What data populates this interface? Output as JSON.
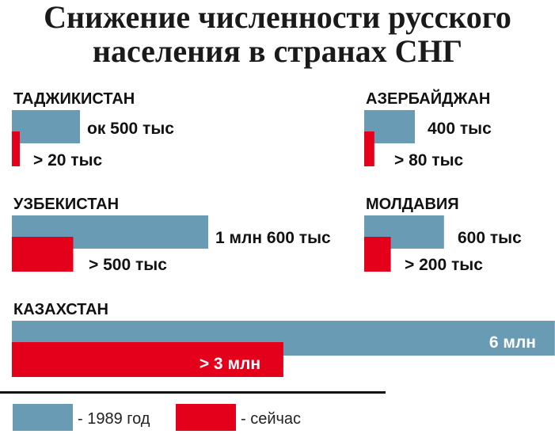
{
  "title": {
    "line1": "Снижение численности русского",
    "line2": "населения в странах СНГ"
  },
  "colors": {
    "before": "#6a9bb5",
    "now": "#e4001b"
  },
  "chart_data": {
    "type": "bar",
    "title": "Снижение численности русского населения в странах СНГ",
    "unit": "тыс",
    "series": [
      {
        "name": "1989 год",
        "color": "#6a9bb5"
      },
      {
        "name": "сейчас",
        "color": "#e4001b"
      }
    ],
    "countries": [
      {
        "name": "ТАДЖИКИСТАН",
        "before": 500,
        "now": 20,
        "before_label": "ок 500 тыс",
        "now_label": "> 20 тыс"
      },
      {
        "name": "АЗЕРБАЙДЖАН",
        "before": 400,
        "now": 80,
        "before_label": "400 тыс",
        "now_label": "> 80 тыс"
      },
      {
        "name": "УЗБЕКИСТАН",
        "before": 1600,
        "now": 500,
        "before_label": "1 млн 600 тыс",
        "now_label": "> 500 тыс"
      },
      {
        "name": "МОЛДАВИЯ",
        "before": 600,
        "now": 200,
        "before_label": "600 тыс",
        "now_label": "> 200 тыс"
      },
      {
        "name": "КАЗАХСТАН",
        "before": 6000,
        "now": 3000,
        "before_label": "6 млн",
        "now_label": "> 3 млн"
      }
    ]
  },
  "legend": [
    {
      "label": "- 1989 год"
    },
    {
      "label": "- сейчас"
    }
  ]
}
